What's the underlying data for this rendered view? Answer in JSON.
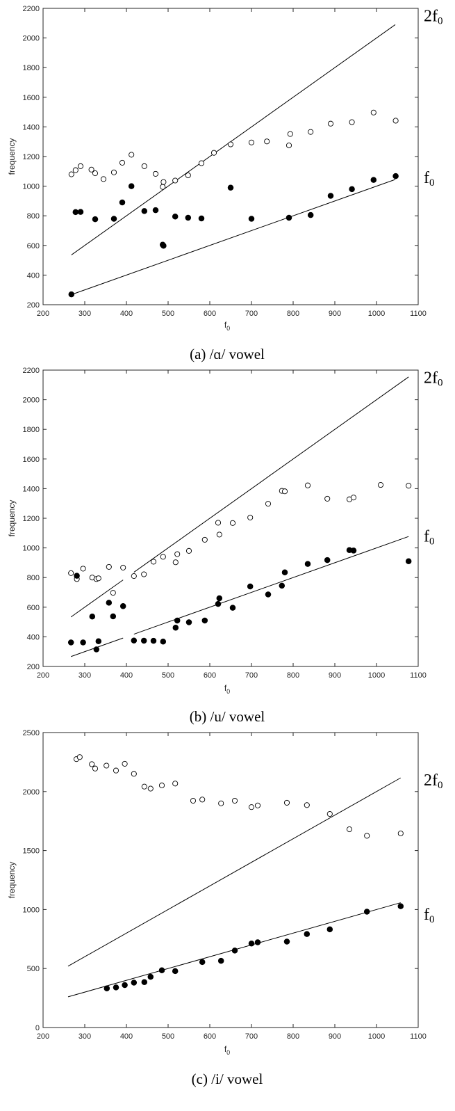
{
  "chart_data": [
    {
      "type": "scatter",
      "caption": "(a) /ɑ/ vowel",
      "xlabel": "f",
      "xlabel_sub": "0",
      "ylabel": "frequency",
      "xlim": [
        200,
        1100
      ],
      "ylim": [
        200,
        2200
      ],
      "xticks": [
        200,
        300,
        400,
        500,
        600,
        700,
        800,
        900,
        1000,
        1100
      ],
      "yticks": [
        200,
        400,
        600,
        800,
        1000,
        1200,
        1400,
        1600,
        1800,
        2000,
        2200
      ],
      "grid": false,
      "side_labels": [
        {
          "text": "2f",
          "sub": "0",
          "y": 2150
        },
        {
          "text": "f",
          "sub": "0",
          "y": 1060
        }
      ],
      "lines": [
        {
          "points": [
            [
              268,
              536
            ],
            [
              1045,
              2090
            ]
          ]
        },
        {
          "points": [
            [
              268,
              268
            ],
            [
              1045,
              1045
            ]
          ]
        }
      ],
      "series": [
        {
          "marker": "open",
          "points": [
            [
              268,
              1080
            ],
            [
              278,
              1108
            ],
            [
              290,
              1135
            ],
            [
              316,
              1112
            ],
            [
              325,
              1087
            ],
            [
              345,
              1048
            ],
            [
              370,
              1093
            ],
            [
              390,
              1158
            ],
            [
              412,
              1212
            ],
            [
              443,
              1135
            ],
            [
              470,
              1083
            ],
            [
              487,
              995
            ],
            [
              489,
              1028
            ],
            [
              517,
              1038
            ],
            [
              548,
              1073
            ],
            [
              580,
              1155
            ],
            [
              610,
              1225
            ],
            [
              650,
              1282
            ],
            [
              700,
              1295
            ],
            [
              737,
              1302
            ],
            [
              790,
              1275
            ],
            [
              793,
              1352
            ],
            [
              842,
              1366
            ],
            [
              890,
              1422
            ],
            [
              941,
              1432
            ],
            [
              993,
              1497
            ],
            [
              1046,
              1442
            ]
          ]
        },
        {
          "marker": "filled",
          "points": [
            [
              268,
              270
            ],
            [
              278,
              825
            ],
            [
              290,
              826
            ],
            [
              325,
              777
            ],
            [
              370,
              780
            ],
            [
              390,
              890
            ],
            [
              412,
              1000
            ],
            [
              443,
              832
            ],
            [
              470,
              838
            ],
            [
              487,
              605
            ],
            [
              489,
              598
            ],
            [
              517,
              795
            ],
            [
              548,
              787
            ],
            [
              580,
              782
            ],
            [
              650,
              990
            ],
            [
              700,
              780
            ],
            [
              790,
              787
            ],
            [
              842,
              805
            ],
            [
              890,
              935
            ],
            [
              941,
              980
            ],
            [
              993,
              1042
            ],
            [
              1046,
              1068
            ]
          ]
        }
      ]
    },
    {
      "type": "scatter",
      "caption": "(b) /u/ vowel",
      "xlabel": "f",
      "xlabel_sub": "0",
      "ylabel": "frequency",
      "xlim": [
        200,
        1100
      ],
      "ylim": [
        200,
        2200
      ],
      "xticks": [
        200,
        300,
        400,
        500,
        600,
        700,
        800,
        900,
        1000,
        1100
      ],
      "yticks": [
        200,
        400,
        600,
        800,
        1000,
        1200,
        1400,
        1600,
        1800,
        2000,
        2200
      ],
      "grid": false,
      "side_labels": [
        {
          "text": "2f",
          "sub": "0",
          "y": 2150
        },
        {
          "text": "f",
          "sub": "0",
          "y": 1080
        }
      ],
      "lines": [
        {
          "points": [
            [
              267,
              534
            ],
            [
              392,
              784
            ]
          ]
        },
        {
          "points": [
            [
              418,
              836
            ],
            [
              1077,
              2154
            ]
          ]
        },
        {
          "points": [
            [
              267,
              267
            ],
            [
              392,
              392
            ]
          ]
        },
        {
          "points": [
            [
              418,
              418
            ],
            [
              1077,
              1077
            ]
          ]
        }
      ],
      "series": [
        {
          "marker": "open",
          "points": [
            [
              267,
              830
            ],
            [
              281,
              790
            ],
            [
              296,
              860
            ],
            [
              318,
              800
            ],
            [
              328,
              790
            ],
            [
              333,
              795
            ],
            [
              358,
              872
            ],
            [
              368,
              697
            ],
            [
              392,
              867
            ],
            [
              418,
              810
            ],
            [
              442,
              822
            ],
            [
              465,
              907
            ],
            [
              488,
              940
            ],
            [
              518,
              903
            ],
            [
              522,
              958
            ],
            [
              550,
              980
            ],
            [
              588,
              1055
            ],
            [
              620,
              1170
            ],
            [
              623,
              1090
            ],
            [
              655,
              1168
            ],
            [
              697,
              1205
            ],
            [
              740,
              1298
            ],
            [
              773,
              1385
            ],
            [
              780,
              1382
            ],
            [
              835,
              1422
            ],
            [
              882,
              1332
            ],
            [
              935,
              1328
            ],
            [
              945,
              1340
            ],
            [
              1010,
              1425
            ],
            [
              1077,
              1420
            ]
          ]
        },
        {
          "marker": "filled",
          "points": [
            [
              267,
              362
            ],
            [
              281,
              812
            ],
            [
              296,
              362
            ],
            [
              318,
              537
            ],
            [
              328,
              315
            ],
            [
              333,
              370
            ],
            [
              358,
              630
            ],
            [
              368,
              538
            ],
            [
              392,
              607
            ],
            [
              418,
              375
            ],
            [
              442,
              374
            ],
            [
              465,
              373
            ],
            [
              488,
              368
            ],
            [
              518,
              462
            ],
            [
              522,
              510
            ],
            [
              550,
              498
            ],
            [
              588,
              510
            ],
            [
              620,
              622
            ],
            [
              623,
              660
            ],
            [
              655,
              596
            ],
            [
              697,
              740
            ],
            [
              740,
              686
            ],
            [
              773,
              745
            ],
            [
              780,
              835
            ],
            [
              835,
              892
            ],
            [
              882,
              918
            ],
            [
              935,
              985
            ],
            [
              945,
              982
            ],
            [
              1077,
              910
            ]
          ]
        }
      ]
    },
    {
      "type": "scatter",
      "caption": "(c) /i/ vowel",
      "xlabel": "f",
      "xlabel_sub": "0",
      "ylabel": "frequency",
      "xlim": [
        200,
        1100
      ],
      "ylim": [
        0,
        2500
      ],
      "xticks": [
        200,
        300,
        400,
        500,
        600,
        700,
        800,
        900,
        1000,
        1100
      ],
      "yticks": [
        0,
        500,
        1000,
        1500,
        2000,
        2500
      ],
      "grid": false,
      "side_labels": [
        {
          "text": "2f",
          "sub": "0",
          "y": 2100
        },
        {
          "text": "f",
          "sub": "0",
          "y": 960
        }
      ],
      "lines": [
        {
          "points": [
            [
              260,
              520
            ],
            [
              1058,
              2116
            ]
          ]
        },
        {
          "points": [
            [
              260,
              260
            ],
            [
              1058,
              1058
            ]
          ]
        }
      ],
      "series": [
        {
          "marker": "open",
          "points": [
            [
              280,
              2275
            ],
            [
              288,
              2292
            ],
            [
              317,
              2232
            ],
            [
              325,
              2195
            ],
            [
              352,
              2220
            ],
            [
              375,
              2178
            ],
            [
              396,
              2235
            ],
            [
              418,
              2150
            ],
            [
              443,
              2042
            ],
            [
              458,
              2025
            ],
            [
              485,
              2052
            ],
            [
              517,
              2068
            ],
            [
              560,
              1922
            ],
            [
              582,
              1932
            ],
            [
              627,
              1900
            ],
            [
              660,
              1922
            ],
            [
              700,
              1868
            ],
            [
              715,
              1882
            ],
            [
              785,
              1905
            ],
            [
              833,
              1885
            ],
            [
              888,
              1810
            ],
            [
              935,
              1680
            ],
            [
              977,
              1625
            ],
            [
              1058,
              1645
            ]
          ]
        },
        {
          "marker": "filled",
          "points": [
            [
              353,
              332
            ],
            [
              375,
              340
            ],
            [
              396,
              360
            ],
            [
              418,
              380
            ],
            [
              443,
              385
            ],
            [
              458,
              430
            ],
            [
              485,
              485
            ],
            [
              517,
              478
            ],
            [
              582,
              555
            ],
            [
              627,
              565
            ],
            [
              660,
              652
            ],
            [
              700,
              712
            ],
            [
              715,
              722
            ],
            [
              785,
              728
            ],
            [
              833,
              792
            ],
            [
              888,
              832
            ],
            [
              977,
              982
            ],
            [
              1058,
              1028
            ]
          ]
        }
      ]
    }
  ]
}
